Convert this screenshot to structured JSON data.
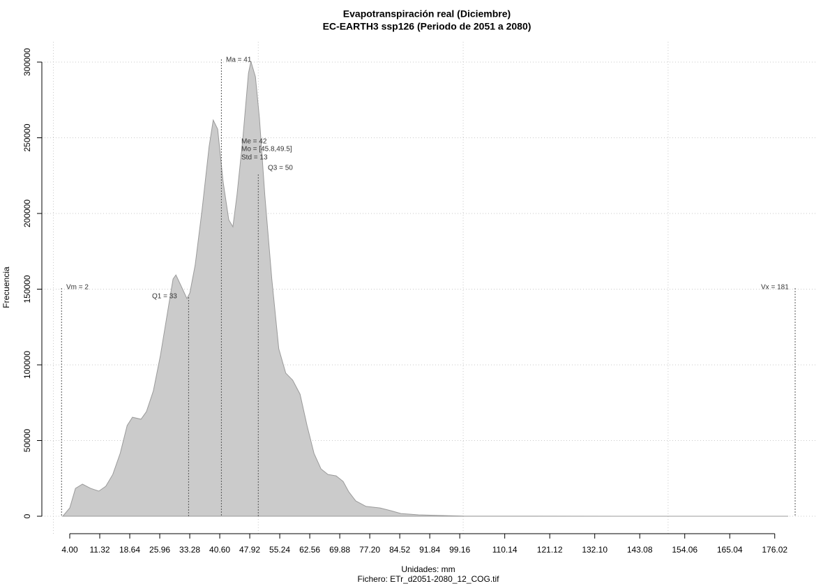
{
  "chart_data": {
    "type": "area",
    "title": "Evapotranspiración real (Diciembre)",
    "subtitle": "EC-EARTH3 ssp126 (Periodo de 2051 a 2080)",
    "xlabel": "Unidades: mm",
    "caption": "Fichero: ETr_d2051-2080_12_COG.tif",
    "ylabel": "Frecuencia",
    "color": "#cbcbcb",
    "grid": true,
    "x": [
      2.3,
      4.0,
      5.4,
      7.1,
      9.1,
      11.1,
      12.8,
      14.5,
      16.3,
      18.0,
      19.3,
      21.4,
      22.7,
      24.4,
      26.1,
      27.8,
      29.2,
      29.9,
      31.2,
      32.6,
      33.3,
      34.6,
      36.3,
      38.0,
      39.0,
      40.1,
      41.4,
      42.8,
      43.8,
      44.8,
      46.2,
      47.6,
      48.2,
      49.3,
      50.3,
      51.6,
      53.3,
      55.0,
      56.7,
      58.4,
      60.2,
      61.9,
      63.6,
      65.3,
      67.0,
      69.0,
      70.7,
      72.1,
      73.8,
      76.3,
      79.7,
      82.3,
      84.8,
      89.1,
      94.2,
      100.1,
      106,
      140.1,
      179.3
    ],
    "values": [
      0,
      5500,
      18400,
      21200,
      18400,
      16600,
      19800,
      27600,
      41500,
      59900,
      65400,
      64100,
      69100,
      82900,
      106000,
      133600,
      156700,
      159400,
      152000,
      143800,
      147500,
      165900,
      202800,
      244200,
      261700,
      255700,
      221200,
      195800,
      191200,
      212000,
      248800,
      292600,
      300400,
      290300,
      262700,
      212000,
      156700,
      110600,
      94500,
      89900,
      80600,
      59900,
      41500,
      31300,
      27600,
      26700,
      23000,
      16100,
      10100,
      6500,
      5500,
      3700,
      1800,
      900,
      500,
      100,
      50,
      20,
      0
    ],
    "xlim": [
      0,
      181
    ],
    "ylim": [
      0,
      300000
    ],
    "xticks": [
      {
        "value": 4,
        "label": "4.00"
      },
      11.32,
      18.64,
      25.96,
      33.28,
      {
        "value": 40.6,
        "label": "40.60"
      },
      47.92,
      55.24,
      62.56,
      69.88,
      {
        "value": 77.2,
        "label": "77.20"
      },
      84.52,
      91.84,
      99.16,
      110.14,
      121.12,
      {
        "value": 132.1,
        "label": "132.10"
      },
      143.08,
      154.06,
      165.04,
      176.02
    ],
    "xgrid": [
      0,
      50,
      100,
      150
    ],
    "yticks": [
      0,
      50000,
      100000,
      150000,
      200000,
      250000,
      300000
    ],
    "annotations": [
      {
        "label": "Vm = 2",
        "x": 2
      },
      {
        "label": "Q1 = 33",
        "x": 33
      },
      {
        "label": "Ma = 41",
        "x": 41
      },
      {
        "label": "Me = 42"
      },
      {
        "label": "Mo = [45.8,49.5]"
      },
      {
        "label": "Std = 13"
      },
      {
        "label": "Q3 = 50",
        "x": 50
      },
      {
        "label": "Vx = 181",
        "x": 181
      }
    ]
  }
}
